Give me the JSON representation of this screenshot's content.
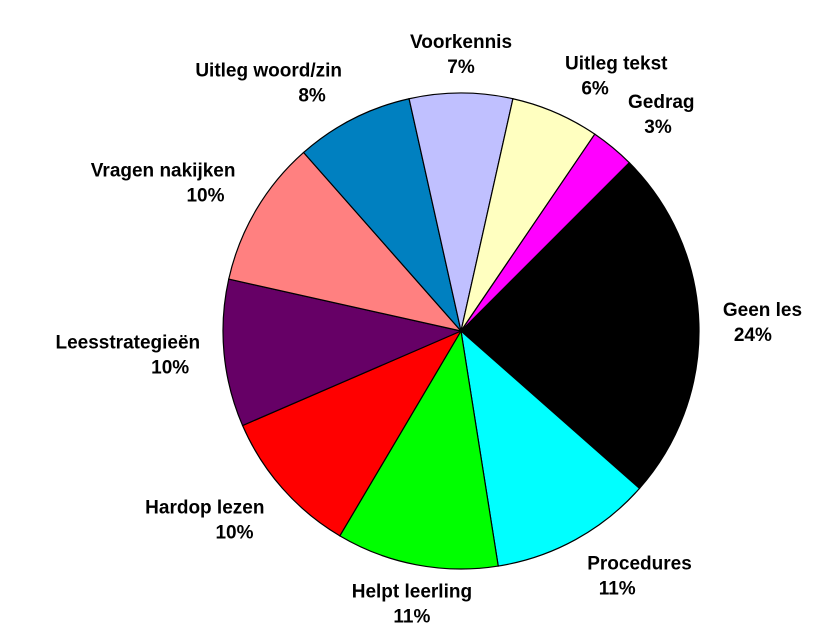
{
  "chart_data": {
    "type": "pie",
    "categories": [
      "Geen les",
      "Procedures",
      "Helpt leerling",
      "Hardop lezen",
      "Leesstrategieën",
      "Vragen nakijken",
      "Uitleg woord/zin",
      "Voorkennis",
      "Uitleg tekst",
      "Gedrag"
    ],
    "values": [
      24,
      11,
      11,
      10,
      10,
      10,
      8,
      7,
      6,
      3
    ],
    "value_labels": [
      "24%",
      "11%",
      "11%",
      "10%",
      "10%",
      "10%",
      "8%",
      "7%",
      "6%",
      "3%"
    ],
    "colors": [
      "#000000",
      "#00ffff",
      "#00ff00",
      "#ff0000",
      "#660066",
      "#ff8080",
      "#0080c0",
      "#c0c0ff",
      "#ffffc0",
      "#ff00ff"
    ]
  }
}
